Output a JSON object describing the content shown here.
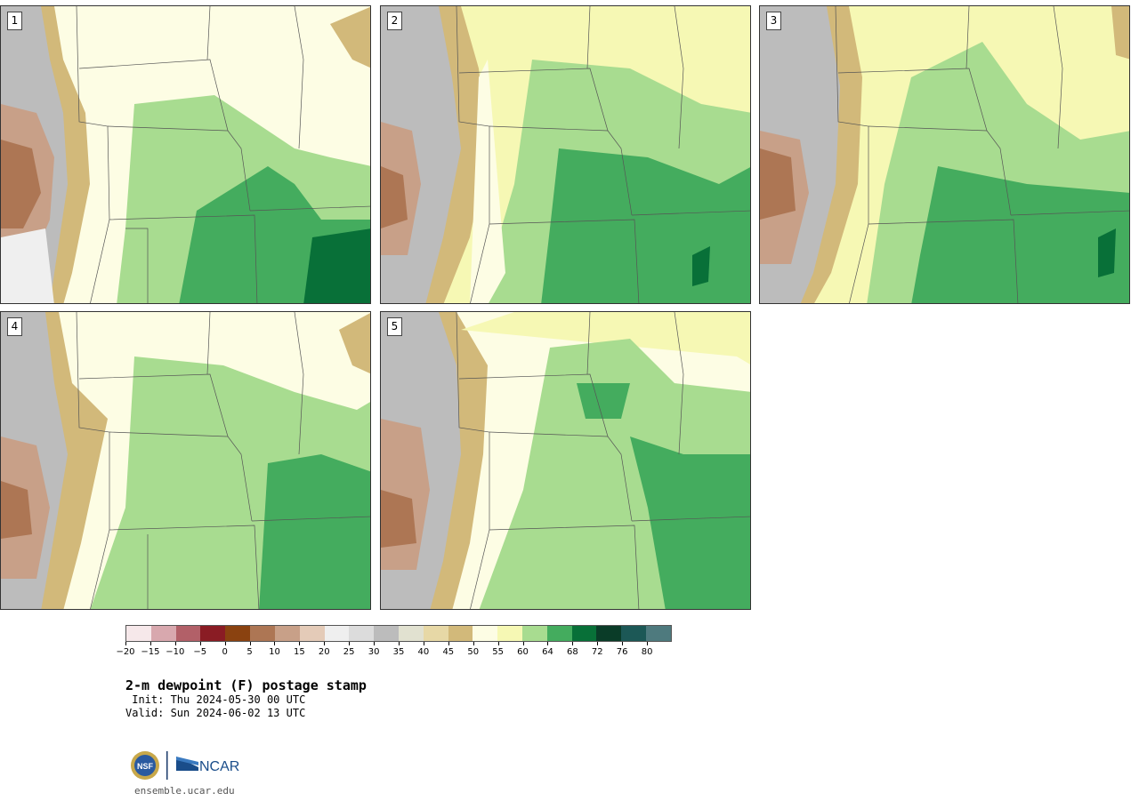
{
  "panels": [
    {
      "label": "1"
    },
    {
      "label": "2"
    },
    {
      "label": "3"
    },
    {
      "label": "4"
    },
    {
      "label": "5"
    }
  ],
  "colorbar": {
    "colors": [
      "#f6e8ea",
      "#d8a8ae",
      "#b26068",
      "#8a1c24",
      "#8a4210",
      "#ad7654",
      "#c8a088",
      "#e4cbb8",
      "#efefef",
      "#dcdcdc",
      "#bcbcbc",
      "#e1e1d0",
      "#e7d8a6",
      "#d2b97a",
      "#fdfde4",
      "#f6f8b4",
      "#a8dc90",
      "#44ac5e",
      "#087038",
      "#0a3c28",
      "#1c5856",
      "#4e7a7e"
    ],
    "tick_labels": [
      "−20",
      "−15",
      "−10",
      "−5",
      "0",
      "5",
      "10",
      "15",
      "20",
      "25",
      "30",
      "35",
      "40",
      "45",
      "50",
      "55",
      "60",
      "64",
      "68",
      "72",
      "76",
      "80"
    ]
  },
  "title": "2-m dewpoint (F) postage stamp",
  "init": " Init: Thu 2024-05-30 00 UTC",
  "valid": "Valid: Sun 2024-06-02 13 UTC",
  "logos": {
    "nsf": "NSF",
    "ncar": "NCAR"
  },
  "site": "ensemble.ucar.edu"
}
